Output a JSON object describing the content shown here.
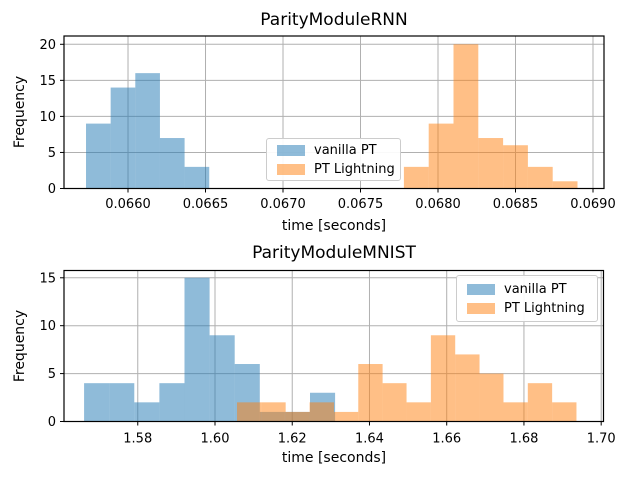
{
  "figure": {
    "background": "#ffffff",
    "grid_color": "#b0b0b0",
    "spine_color": "#000000",
    "text_color": "#000000"
  },
  "chart_data": [
    {
      "type": "histogram",
      "title": "ParityModuleRNN",
      "xlabel": "time [seconds]",
      "ylabel": "Frequency",
      "xlim": [
        0.065587,
        0.069071
      ],
      "ylim": [
        0,
        21.15
      ],
      "grid": true,
      "xticks": {
        "values": [
          0.066,
          0.0665,
          0.067,
          0.0675,
          0.068,
          0.0685,
          0.069
        ],
        "labels": [
          "0.0660",
          "0.0665",
          "0.0670",
          "0.0675",
          "0.0680",
          "0.0685",
          "0.0690"
        ]
      },
      "yticks": {
        "values": [
          0,
          5,
          10,
          15,
          20
        ],
        "labels": [
          "0",
          "5",
          "10",
          "15",
          "20"
        ]
      },
      "legend": {
        "location": "center",
        "labels": [
          "vanilla PT",
          "PT Lightning"
        ]
      },
      "series": [
        {
          "name": "vanilla PT",
          "color": "#1f77b4",
          "alpha": 0.5,
          "bin_edges": [
            0.065729,
            0.065888,
            0.066047,
            0.066206,
            0.066365,
            0.066524
          ],
          "counts": [
            9,
            14,
            16,
            7,
            3
          ]
        },
        {
          "name": "PT Lightning",
          "color": "#ff7f0e",
          "alpha": 0.5,
          "bin_edges": [
            0.06778,
            0.06794,
            0.0681,
            0.06826,
            0.06842,
            0.06858,
            0.06874,
            0.0689
          ],
          "counts": [
            3,
            9,
            20,
            7,
            6,
            3,
            1
          ]
        }
      ]
    },
    {
      "type": "histogram",
      "title": "ParityModuleMNIST",
      "xlabel": "time [seconds]",
      "ylabel": "Frequency",
      "xlim": [
        1.5609,
        1.7006
      ],
      "ylim": [
        0,
        15.76
      ],
      "grid": true,
      "xticks": {
        "values": [
          1.58,
          1.6,
          1.62,
          1.64,
          1.66,
          1.68,
          1.7
        ],
        "labels": [
          "1.58",
          "1.60",
          "1.62",
          "1.64",
          "1.66",
          "1.68",
          "1.70"
        ]
      },
      "yticks": {
        "values": [
          0,
          5,
          10,
          15
        ],
        "labels": [
          "0",
          "5",
          "10",
          "15"
        ]
      },
      "legend": {
        "location": "upper right",
        "labels": [
          "vanilla PT",
          "PT Lightning"
        ]
      },
      "series": [
        {
          "name": "vanilla PT",
          "color": "#1f77b4",
          "alpha": 0.5,
          "bin_edges": [
            1.5661,
            1.5726,
            1.5791,
            1.5856,
            1.5921,
            1.5986,
            1.6051,
            1.6116,
            1.6181,
            1.6246,
            1.6311
          ],
          "counts": [
            4,
            4,
            2,
            4,
            15,
            9,
            6,
            1,
            1,
            3
          ]
        },
        {
          "name": "PT Lightning",
          "color": "#ff7f0e",
          "alpha": 0.5,
          "bin_edges": [
            1.6057,
            1.612,
            1.6183,
            1.6245,
            1.6308,
            1.6371,
            1.6434,
            1.6496,
            1.6559,
            1.6622,
            1.6685,
            1.6747,
            1.681,
            1.6873,
            1.6936
          ],
          "counts": [
            2,
            2,
            1,
            2,
            1,
            6,
            4,
            2,
            9,
            7,
            5,
            2,
            4,
            2
          ]
        }
      ]
    }
  ]
}
